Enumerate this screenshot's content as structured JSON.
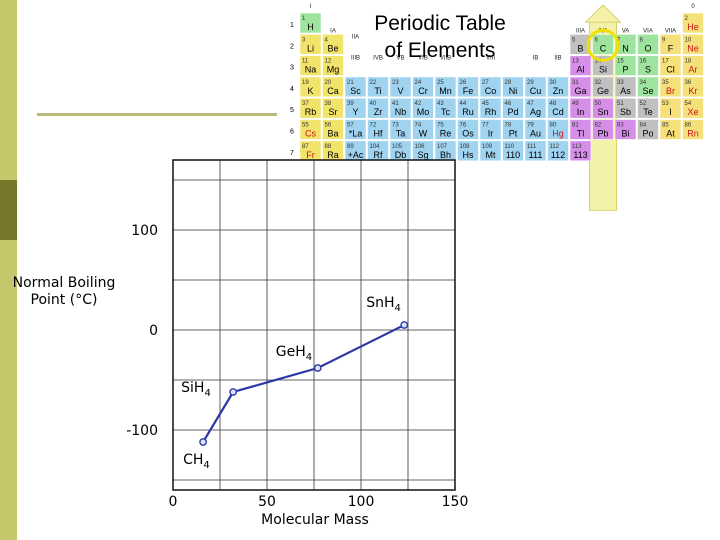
{
  "slide": {
    "colors": {
      "band": "#c6c66a",
      "band_dark": "#77772a",
      "rule": "#b9b97a"
    }
  },
  "periodic_table": {
    "title_line1": "Periodic Table",
    "title_line2": "of Elements",
    "row_numbers": [
      "1",
      "2",
      "3",
      "4",
      "5",
      "6",
      "7"
    ],
    "column_labels": [
      "I",
      "IA",
      "IIIA",
      "IVA",
      "VA",
      "VIA",
      "VIIA",
      "0",
      "IIA",
      "IIIB",
      "IVB",
      "VB",
      "VIB",
      "VIIB",
      "VIII",
      "IB",
      "IIB"
    ],
    "highlighted_group": "IVA",
    "colors": {
      "alkali": "#f2e36a",
      "alkaline": "#f2e36a",
      "transition": "#9fd3ef",
      "post_transition": "#d68fe8",
      "metalloid": "#c0c0c0",
      "nonmetal": "#9ee39e",
      "halogen": "#f6e07a",
      "noble": "#f6e07a",
      "highlight_ring": "#f2e000",
      "highlight_column": "#f4f1a8",
      "text_red": "#c91515",
      "text_black": "#000000"
    },
    "cells": [
      {
        "n": "1",
        "s": "H"
      },
      {
        "n": "2",
        "s": "He"
      },
      {
        "n": "3",
        "s": "Li"
      },
      {
        "n": "4",
        "s": "Be"
      },
      {
        "n": "5",
        "s": "B"
      },
      {
        "n": "6",
        "s": "C"
      },
      {
        "n": "7",
        "s": "N"
      },
      {
        "n": "8",
        "s": "O"
      },
      {
        "n": "9",
        "s": "F"
      },
      {
        "n": "10",
        "s": "Ne"
      },
      {
        "n": "11",
        "s": "Na"
      },
      {
        "n": "12",
        "s": "Mg"
      },
      {
        "n": "13",
        "s": "Al"
      },
      {
        "n": "14",
        "s": "Si"
      },
      {
        "n": "15",
        "s": "P"
      },
      {
        "n": "16",
        "s": "S"
      },
      {
        "n": "17",
        "s": "Cl"
      },
      {
        "n": "18",
        "s": "Ar"
      },
      {
        "n": "19",
        "s": "K"
      },
      {
        "n": "20",
        "s": "Ca"
      },
      {
        "n": "21",
        "s": "Sc"
      },
      {
        "n": "22",
        "s": "Ti"
      },
      {
        "n": "23",
        "s": "V"
      },
      {
        "n": "24",
        "s": "Cr"
      },
      {
        "n": "25",
        "s": "Mn"
      },
      {
        "n": "26",
        "s": "Fe"
      },
      {
        "n": "27",
        "s": "Co"
      },
      {
        "n": "28",
        "s": "Ni"
      },
      {
        "n": "29",
        "s": "Cu"
      },
      {
        "n": "30",
        "s": "Zn"
      },
      {
        "n": "31",
        "s": "Ga"
      },
      {
        "n": "32",
        "s": "Ge"
      },
      {
        "n": "33",
        "s": "As"
      },
      {
        "n": "34",
        "s": "Se"
      },
      {
        "n": "35",
        "s": "Br"
      },
      {
        "n": "36",
        "s": "Kr"
      },
      {
        "n": "37",
        "s": "Rb"
      },
      {
        "n": "38",
        "s": "Sr"
      },
      {
        "n": "39",
        "s": "Y"
      },
      {
        "n": "40",
        "s": "Zr"
      },
      {
        "n": "41",
        "s": "Nb"
      },
      {
        "n": "42",
        "s": "Mo"
      },
      {
        "n": "43",
        "s": "Tc"
      },
      {
        "n": "44",
        "s": "Ru"
      },
      {
        "n": "45",
        "s": "Rh"
      },
      {
        "n": "46",
        "s": "Pd"
      },
      {
        "n": "47",
        "s": "Ag"
      },
      {
        "n": "48",
        "s": "Cd"
      },
      {
        "n": "49",
        "s": "In"
      },
      {
        "n": "50",
        "s": "Sn"
      },
      {
        "n": "51",
        "s": "Sb"
      },
      {
        "n": "52",
        "s": "Te"
      },
      {
        "n": "53",
        "s": "I"
      },
      {
        "n": "54",
        "s": "Xe"
      },
      {
        "n": "55",
        "s": "Cs"
      },
      {
        "n": "56",
        "s": "Ba"
      },
      {
        "n": "57",
        "s": "*La"
      },
      {
        "n": "72",
        "s": "Hf"
      },
      {
        "n": "73",
        "s": "Ta"
      },
      {
        "n": "74",
        "s": "W"
      },
      {
        "n": "75",
        "s": "Re"
      },
      {
        "n": "76",
        "s": "Os"
      },
      {
        "n": "77",
        "s": "Ir"
      },
      {
        "n": "78",
        "s": "Pt"
      },
      {
        "n": "79",
        "s": "Au"
      },
      {
        "n": "80",
        "s": "Hg"
      },
      {
        "n": "81",
        "s": "Tl"
      },
      {
        "n": "82",
        "s": "Pb"
      },
      {
        "n": "83",
        "s": "Bi"
      },
      {
        "n": "84",
        "s": "Po"
      },
      {
        "n": "85",
        "s": "At"
      },
      {
        "n": "86",
        "s": "Rn"
      },
      {
        "n": "87",
        "s": "Fr"
      },
      {
        "n": "88",
        "s": "Ra"
      },
      {
        "n": "89",
        "s": "+Ac"
      },
      {
        "n": "104",
        "s": "Rf"
      },
      {
        "n": "105",
        "s": "Db"
      },
      {
        "n": "106",
        "s": "Sg"
      },
      {
        "n": "107",
        "s": "Bh"
      },
      {
        "n": "108",
        "s": "Hs"
      },
      {
        "n": "109",
        "s": "Mt"
      },
      {
        "n": "110",
        "s": "110"
      },
      {
        "n": "111",
        "s": "111"
      },
      {
        "n": "112",
        "s": "112"
      },
      {
        "n": "113",
        "s": "113"
      }
    ]
  },
  "chart_data": {
    "type": "line",
    "xlabel": "Molecular Mass",
    "ylabel": "Normal Boiling Point (°C)",
    "xlim": [
      0,
      150
    ],
    "ylim": [
      -160,
      170
    ],
    "x_ticks": [
      "0",
      "50",
      "100",
      "150"
    ],
    "y_ticks": [
      "100",
      "0",
      "-100"
    ],
    "grid": true,
    "line_color": "#2b3aa8",
    "series": [
      {
        "points": [
          {
            "label": "CH4",
            "x": 16,
            "y": -112
          },
          {
            "label": "SiH4",
            "x": 32,
            "y": -62
          },
          {
            "label": "GeH4",
            "x": 77,
            "y": -38
          },
          {
            "label": "SnH4",
            "x": 123,
            "y": 5
          }
        ]
      }
    ]
  }
}
